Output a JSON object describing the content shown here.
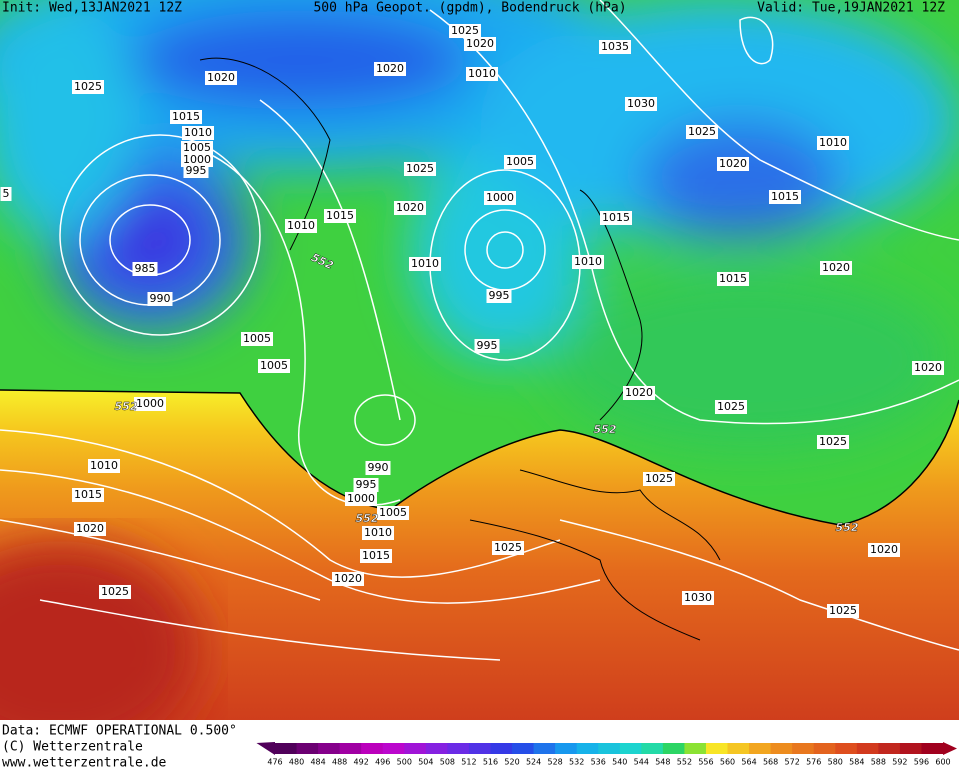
{
  "header": {
    "init": "Init: Wed,13JAN2021 12Z",
    "title": "500 hPa Geopot. (gpdm), Bodendruck (hPa)",
    "valid": "Valid: Tue,19JAN2021 12Z"
  },
  "footer": {
    "data": "Data: ECMWF OPERATIONAL 0.500°",
    "copyright": "(C) Wetterzentrale",
    "url": "www.wetterzentrale.de"
  },
  "pressure_labels": [
    1025,
    1020,
    1020,
    1025,
    1020,
    1010,
    1035,
    1030,
    1025,
    1020,
    1010,
    1015,
    1020,
    1015,
    1010,
    1005,
    1000,
    995,
    985,
    990,
    1005,
    1025,
    1020,
    1015,
    1010,
    1000,
    1015,
    1010,
    1010,
    995,
    1015,
    995,
    1005,
    1005,
    1000,
    1020,
    1025,
    1020,
    1025,
    1010,
    1015,
    990,
    995,
    1000,
    1005,
    1010,
    1025,
    1020,
    1025,
    1015,
    1020,
    1020,
    1025,
    1030,
    1025,
    5
  ],
  "geopotential_labels": [
    552,
    552,
    552,
    552,
    552
  ],
  "colorbar": {
    "ticks": [
      476,
      480,
      484,
      488,
      492,
      496,
      500,
      504,
      508,
      512,
      516,
      520,
      524,
      528,
      532,
      536,
      540,
      544,
      548,
      552,
      556,
      560,
      564,
      568,
      572,
      576,
      580,
      584,
      588,
      592,
      596,
      600
    ]
  }
}
